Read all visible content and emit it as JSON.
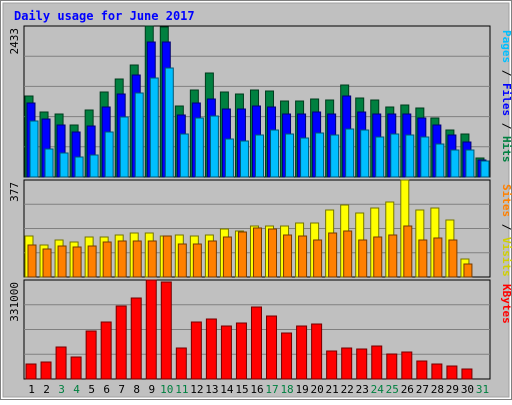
{
  "chart_data": {
    "type": "bar",
    "title": "Daily usage for June 2017",
    "days": [
      "1",
      "2",
      "3",
      "4",
      "5",
      "6",
      "7",
      "8",
      "9",
      "10",
      "11",
      "12",
      "13",
      "14",
      "15",
      "16",
      "17",
      "18",
      "19",
      "20",
      "21",
      "22",
      "23",
      "24",
      "25",
      "26",
      "27",
      "28",
      "29",
      "30",
      "31"
    ],
    "weekend_days": [
      "3",
      "4",
      "10",
      "11",
      "17",
      "18",
      "24",
      "25",
      "31"
    ],
    "panels": [
      {
        "id": "pages-files-hits",
        "max_label": "2433",
        "ylim": [
          0,
          2433
        ],
        "series": [
          {
            "name": "Hits",
            "color": "#008040",
            "values": [
              1300,
              1040,
              1010,
              830,
              1080,
              1370,
              1580,
              1800,
              2433,
              2420,
              1140,
              1400,
              1670,
              1370,
              1330,
              1400,
              1380,
              1230,
              1220,
              1260,
              1240,
              1490,
              1280,
              1240,
              1130,
              1160,
              1110,
              950,
              760,
              690,
              300
            ]
          },
          {
            "name": "Files",
            "color": "#0000ff",
            "values": [
              1190,
              930,
              840,
              720,
              820,
              1120,
              1340,
              1640,
              2180,
              2180,
              1000,
              1200,
              1260,
              1090,
              1090,
              1140,
              1130,
              1020,
              1010,
              1050,
              1020,
              1310,
              1050,
              1010,
              1020,
              1010,
              950,
              830,
              670,
              570,
              280
            ]
          },
          {
            "name": "Pages",
            "color": "#00bfff",
            "values": [
              910,
              450,
              380,
              330,
              350,
              720,
              960,
              1350,
              1590,
              1760,
              700,
              950,
              990,
              620,
              580,
              680,
              750,
              690,
              630,
              710,
              680,
              780,
              750,
              640,
              700,
              670,
              640,
              530,
              440,
              430,
              250
            ]
          }
        ]
      },
      {
        "id": "sites-visits",
        "max_label": "377",
        "ylim": [
          0,
          377
        ],
        "series": [
          {
            "name": "Visits",
            "color": "#ffff00",
            "values": [
              160,
              125,
              145,
              135,
              155,
              155,
              165,
              170,
              170,
              160,
              165,
              160,
              165,
              185,
              180,
              200,
              200,
              200,
              210,
              210,
              260,
              280,
              250,
              270,
              290,
              377,
              260,
              270,
              220,
              70,
              0
            ]
          },
          {
            "name": "Sites",
            "color": "#ff8000",
            "values": [
              125,
              110,
              120,
              115,
              120,
              135,
              140,
              140,
              140,
              160,
              130,
              130,
              140,
              155,
              175,
              190,
              185,
              165,
              160,
              145,
              170,
              180,
              145,
              155,
              165,
              200,
              145,
              150,
              145,
              50,
              0
            ]
          }
        ]
      },
      {
        "id": "kbytes",
        "max_label": "331000",
        "ylim": [
          0,
          331000
        ],
        "series": [
          {
            "name": "KBytes",
            "color": "#ff0000",
            "values": [
              50000,
              58000,
              108000,
              75000,
              162000,
              190000,
              245000,
              271000,
              331000,
              323000,
              103000,
              191000,
              201000,
              178000,
              187000,
              240000,
              210000,
              153000,
              176000,
              183000,
              93000,
              102000,
              101000,
              109000,
              85000,
              89000,
              60000,
              50000,
              42000,
              32000,
              0
            ]
          }
        ]
      }
    ]
  }
}
